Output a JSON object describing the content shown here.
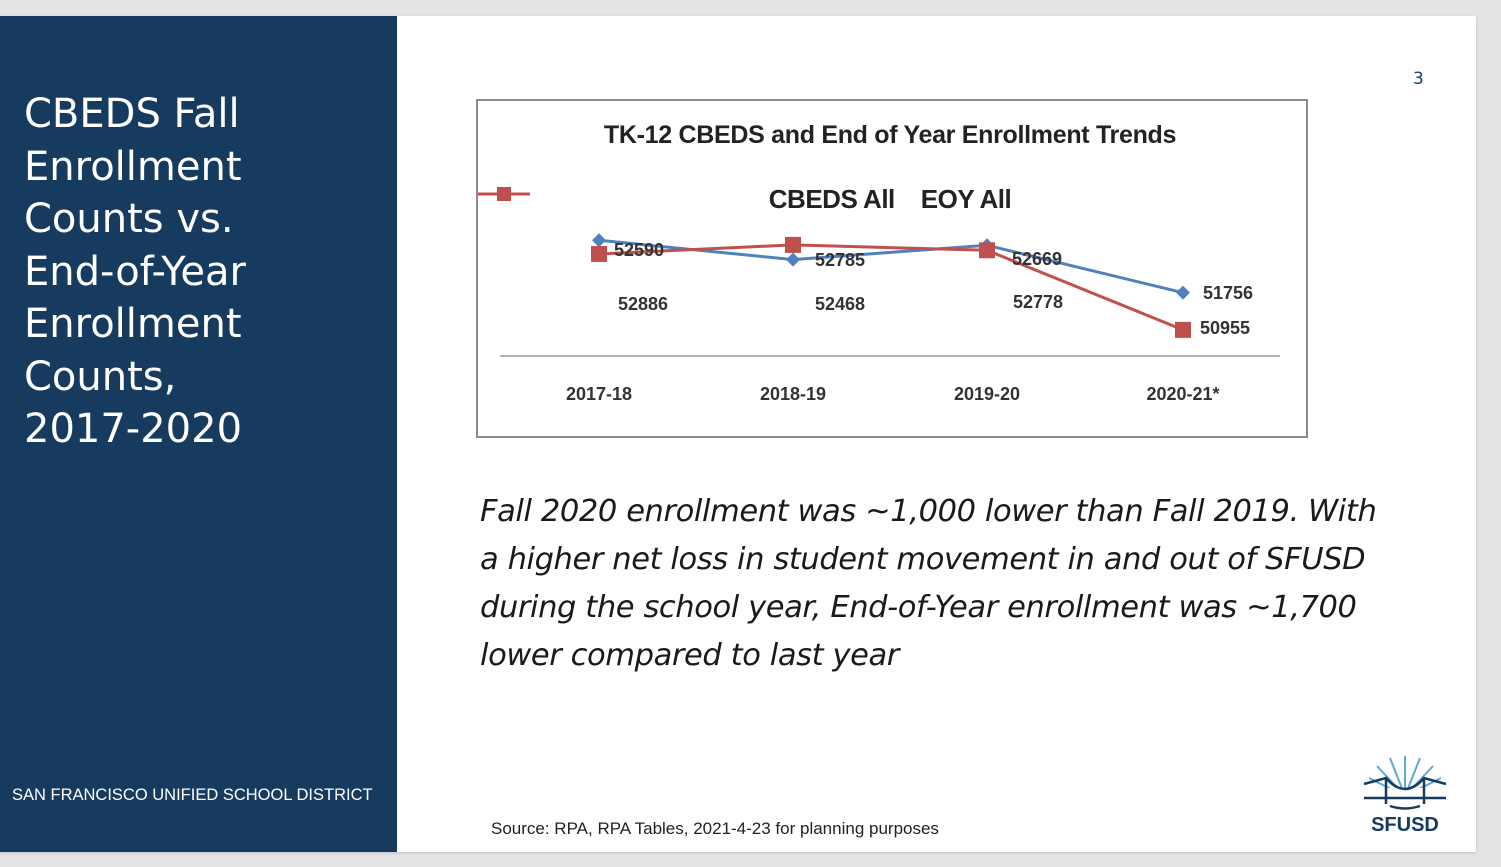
{
  "sidebar": {
    "title": "CBEDS Fall\nEnrollment\nCounts vs.\nEnd-of-Year\nEnrollment\nCounts,\n2017-2020",
    "district_name": "SAN FRANCISCO UNIFIED SCHOOL DISTRICT",
    "background_color": "#173b5f"
  },
  "page_number": "3",
  "body_text": "Fall 2020 enrollment was ~1,000 lower than Fall 2019. With a higher net loss in student movement in and out of SFUSD during the school year, End-of-Year enrollment was ~1,700 lower compared to last year",
  "source_text": "Source: RPA, RPA Tables, 2021-4-23 for planning purposes",
  "logo": {
    "text": "SFUSD",
    "icon": "golden-gate-bridge-sunburst-icon"
  },
  "chart_data": {
    "type": "line",
    "title": "TK-12 CBEDS and End of Year Enrollment Trends",
    "categories": [
      "2017-18",
      "2018-19",
      "2019-20",
      "2020-21*"
    ],
    "series": [
      {
        "name": "CBEDS All",
        "values": [
          52886,
          52468,
          52778,
          51756
        ],
        "color": "#4f81bd",
        "marker": "diamond"
      },
      {
        "name": "EOY All",
        "values": [
          52590,
          52785,
          52669,
          50955
        ],
        "color": "#c0504d",
        "marker": "square"
      }
    ],
    "data_labels": true,
    "legend_position": "top",
    "grid": false
  }
}
